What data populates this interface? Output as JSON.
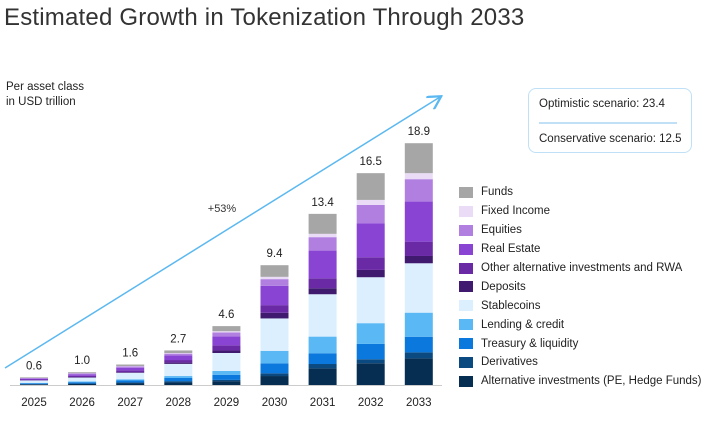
{
  "chart_data": {
    "type": "bar",
    "stacked": true,
    "title": "Estimated Growth in Tokenization Through 2033",
    "ylabel": "Per asset class in USD trillion",
    "ylabel_lines": [
      "Per asset class",
      "in USD trillion"
    ],
    "categories": [
      "2025",
      "2026",
      "2027",
      "2028",
      "2029",
      "2030",
      "2031",
      "2032",
      "2033"
    ],
    "totals": [
      "0.6",
      "1.0",
      "1.6",
      "2.7",
      "4.6",
      "9.4",
      "13.4",
      "16.5",
      "18.9"
    ],
    "ylim": [
      0,
      21
    ],
    "grid": false,
    "legend_position": "right",
    "annotation": "+53%",
    "series": [
      {
        "name": "Alternative investments (PE, Hedge Funds)",
        "color": "#062e52",
        "values": [
          0.05,
          0.08,
          0.15,
          0.2,
          0.3,
          0.7,
          1.3,
          1.7,
          2.08
        ]
      },
      {
        "name": "Derivatives",
        "color": "#0b4a80",
        "values": [
          0.02,
          0.04,
          0.05,
          0.1,
          0.1,
          0.21,
          0.34,
          0.31,
          0.47
        ]
      },
      {
        "name": "Treasury & liquidity",
        "color": "#0a78dc",
        "values": [
          0.06,
          0.1,
          0.15,
          0.25,
          0.4,
          0.78,
          0.84,
          1.2,
          1.22
        ]
      },
      {
        "name": "Lending & credit",
        "color": "#5ab8f5",
        "values": [
          0.04,
          0.06,
          0.1,
          0.15,
          0.3,
          0.98,
          1.3,
          1.62,
          1.88
        ]
      },
      {
        "name": "Stablecoins",
        "color": "#dcefff",
        "values": [
          0.18,
          0.3,
          0.5,
          0.95,
          1.4,
          2.53,
          3.31,
          3.59,
          3.86
        ]
      },
      {
        "name": "Deposits",
        "color": "#3f1a6e",
        "values": [
          0.02,
          0.04,
          0.05,
          0.1,
          0.2,
          0.44,
          0.47,
          0.57,
          0.57
        ]
      },
      {
        "name": "Other alternative investments and RWA",
        "color": "#6a2aa6",
        "values": [
          0.06,
          0.1,
          0.15,
          0.2,
          0.4,
          0.6,
          0.78,
          0.99,
          1.12
        ]
      },
      {
        "name": "Real Estate",
        "color": "#8a44d4",
        "values": [
          0.07,
          0.12,
          0.2,
          0.35,
          0.7,
          1.51,
          2.16,
          2.66,
          3.13
        ]
      },
      {
        "name": "Equities",
        "color": "#b07fe0",
        "values": [
          0.04,
          0.06,
          0.1,
          0.15,
          0.3,
          0.52,
          1.05,
          1.43,
          1.75
        ]
      },
      {
        "name": "Fixed Income",
        "color": "#eadcf7",
        "values": [
          0.01,
          0.02,
          0.03,
          0.05,
          0.1,
          0.18,
          0.26,
          0.39,
          0.47
        ]
      },
      {
        "name": "Funds",
        "color": "#a6a6a6",
        "values": [
          0.05,
          0.08,
          0.12,
          0.2,
          0.4,
          0.91,
          1.56,
          2.09,
          2.34
        ]
      }
    ],
    "scenarios": {
      "optimistic": "Optimistic scenario: 23.4",
      "conservative": "Conservative scenario: 12.5"
    },
    "colors": {
      "arrow": "#5bb8f0",
      "box_border": "#bfe0f7"
    }
  }
}
